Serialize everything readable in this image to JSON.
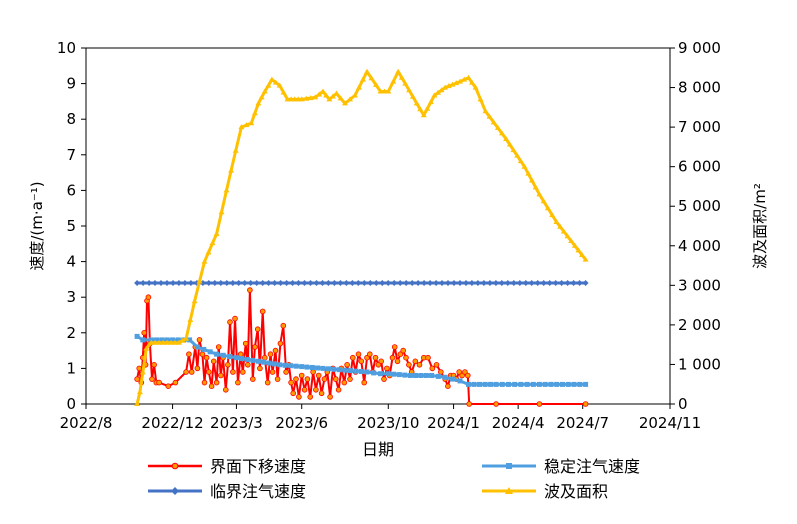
{
  "chart_data": {
    "type": "line",
    "xlabel": "日期",
    "ylabel_left": "速度/(m·a⁻¹)",
    "ylabel_right": "波及面积/m²",
    "x_ticks": [
      "2022/8",
      "2022/12",
      "2023/3",
      "2023/6",
      "2023/10",
      "2024/1",
      "2024/4",
      "2024/7",
      "2024/11"
    ],
    "y_left_ticks": [
      "0",
      "1",
      "2",
      "3",
      "4",
      "5",
      "6",
      "7",
      "8",
      "9",
      "10"
    ],
    "y_right_ticks": [
      "0",
      "1 000",
      "2 000",
      "3 000",
      "4 000",
      "5 000",
      "6 000",
      "7 000",
      "8 000",
      "9 000"
    ],
    "ylim_left": [
      0,
      10
    ],
    "ylim_right": [
      0,
      9000
    ],
    "legend": {
      "position": "bottom",
      "items": [
        "界面下移速度",
        "稳定注气速度",
        "临界注气速度",
        "波及面积"
      ]
    },
    "series": [
      {
        "name": "界面下移速度",
        "axis": "left",
        "color": "#ff0000",
        "marker_color": "#ff9900",
        "points": [
          [
            "2022-10-12",
            0.7
          ],
          [
            "2022-10-15",
            1.0
          ],
          [
            "2022-10-18",
            0.6
          ],
          [
            "2022-10-20",
            1.3
          ],
          [
            "2022-10-22",
            2.0
          ],
          [
            "2022-10-24",
            1.1
          ],
          [
            "2022-10-26",
            2.9
          ],
          [
            "2022-10-28",
            3.0
          ],
          [
            "2022-10-30",
            1.7
          ],
          [
            "2022-11-02",
            0.7
          ],
          [
            "2022-11-05",
            1.1
          ],
          [
            "2022-11-08",
            0.6
          ],
          [
            "2022-11-12",
            0.6
          ],
          [
            "2022-11-25",
            0.5
          ],
          [
            "2022-12-05",
            0.6
          ],
          [
            "2022-12-20",
            0.9
          ],
          [
            "2022-12-24",
            1.4
          ],
          [
            "2022-12-28",
            0.9
          ],
          [
            "2023-01-02",
            1.6
          ],
          [
            "2023-01-05",
            1.0
          ],
          [
            "2023-01-08",
            1.8
          ],
          [
            "2023-01-12",
            1.4
          ],
          [
            "2023-01-15",
            0.6
          ],
          [
            "2023-01-18",
            1.3
          ],
          [
            "2023-01-21",
            0.9
          ],
          [
            "2023-01-25",
            0.5
          ],
          [
            "2023-01-28",
            1.2
          ],
          [
            "2023-02-01",
            0.6
          ],
          [
            "2023-02-04",
            1.6
          ],
          [
            "2023-02-07",
            0.8
          ],
          [
            "2023-02-10",
            1.3
          ],
          [
            "2023-02-14",
            0.4
          ],
          [
            "2023-02-17",
            1.1
          ],
          [
            "2023-02-20",
            2.3
          ],
          [
            "2023-02-24",
            0.9
          ],
          [
            "2023-02-27",
            2.4
          ],
          [
            "2023-03-03",
            0.6
          ],
          [
            "2023-03-07",
            1.4
          ],
          [
            "2023-03-10",
            0.9
          ],
          [
            "2023-03-14",
            1.7
          ],
          [
            "2023-03-17",
            1.1
          ],
          [
            "2023-03-20",
            3.2
          ],
          [
            "2023-03-24",
            0.7
          ],
          [
            "2023-03-27",
            1.6
          ],
          [
            "2023-03-31",
            2.1
          ],
          [
            "2023-04-03",
            1.0
          ],
          [
            "2023-04-07",
            2.6
          ],
          [
            "2023-04-10",
            1.3
          ],
          [
            "2023-04-14",
            0.6
          ],
          [
            "2023-04-18",
            1.4
          ],
          [
            "2023-04-21",
            0.9
          ],
          [
            "2023-04-25",
            1.5
          ],
          [
            "2023-04-28",
            0.7
          ],
          [
            "2023-05-02",
            1.7
          ],
          [
            "2023-05-06",
            2.2
          ],
          [
            "2023-05-10",
            0.9
          ],
          [
            "2023-05-14",
            1.1
          ],
          [
            "2023-05-17",
            0.6
          ],
          [
            "2023-05-20",
            0.3
          ],
          [
            "2023-05-24",
            0.7
          ],
          [
            "2023-05-28",
            0.2
          ],
          [
            "2023-06-01",
            0.8
          ],
          [
            "2023-06-05",
            0.4
          ],
          [
            "2023-06-09",
            0.7
          ],
          [
            "2023-06-13",
            0.2
          ],
          [
            "2023-06-17",
            0.9
          ],
          [
            "2023-06-21",
            0.4
          ],
          [
            "2023-06-25",
            0.8
          ],
          [
            "2023-06-29",
            0.3
          ],
          [
            "2023-07-03",
            0.7
          ],
          [
            "2023-07-07",
            0.9
          ],
          [
            "2023-07-11",
            0.2
          ],
          [
            "2023-07-15",
            1.0
          ],
          [
            "2023-07-19",
            0.7
          ],
          [
            "2023-07-23",
            0.4
          ],
          [
            "2023-07-27",
            1.0
          ],
          [
            "2023-07-31",
            0.6
          ],
          [
            "2023-08-04",
            1.1
          ],
          [
            "2023-08-08",
            0.7
          ],
          [
            "2023-08-12",
            1.3
          ],
          [
            "2023-08-16",
            0.9
          ],
          [
            "2023-08-20",
            1.4
          ],
          [
            "2023-08-24",
            1.2
          ],
          [
            "2023-08-28",
            0.6
          ],
          [
            "2023-09-01",
            1.3
          ],
          [
            "2023-09-05",
            1.4
          ],
          [
            "2023-09-09",
            0.9
          ],
          [
            "2023-09-13",
            1.3
          ],
          [
            "2023-09-17",
            1.1
          ],
          [
            "2023-09-21",
            1.2
          ],
          [
            "2023-09-25",
            0.7
          ],
          [
            "2023-09-29",
            1.0
          ],
          [
            "2023-10-03",
            0.8
          ],
          [
            "2023-10-07",
            1.3
          ],
          [
            "2023-10-10",
            1.6
          ],
          [
            "2023-10-14",
            1.2
          ],
          [
            "2023-10-18",
            1.4
          ],
          [
            "2023-10-22",
            1.5
          ],
          [
            "2023-10-26",
            1.3
          ],
          [
            "2023-10-30",
            1.1
          ],
          [
            "2023-11-03",
            0.9
          ],
          [
            "2023-11-08",
            1.2
          ],
          [
            "2023-11-14",
            1.1
          ],
          [
            "2023-11-20",
            1.3
          ],
          [
            "2023-11-26",
            1.3
          ],
          [
            "2023-12-02",
            1.0
          ],
          [
            "2023-12-08",
            1.1
          ],
          [
            "2023-12-14",
            0.9
          ],
          [
            "2023-12-20",
            0.7
          ],
          [
            "2023-12-24",
            0.5
          ],
          [
            "2023-12-28",
            0.8
          ],
          [
            "2024-01-01",
            0.8
          ],
          [
            "2024-01-05",
            0.7
          ],
          [
            "2024-01-09",
            0.9
          ],
          [
            "2024-01-13",
            0.8
          ],
          [
            "2024-01-17",
            0.9
          ],
          [
            "2024-01-21",
            0.8
          ],
          [
            "2024-01-23",
            0.0
          ],
          [
            "2024-03-01",
            0.0
          ],
          [
            "2024-05-01",
            0.0
          ],
          [
            "2024-07-05",
            0.0
          ]
        ]
      },
      {
        "name": "稳定注气速度",
        "axis": "left",
        "color": "#4f9fe0",
        "points": [
          [
            "2022-10-12",
            1.9
          ],
          [
            "2022-10-20",
            1.8
          ],
          [
            "2022-11-01",
            1.8
          ],
          [
            "2022-12-01",
            1.8
          ],
          [
            "2022-12-25",
            1.8
          ],
          [
            "2023-01-05",
            1.6
          ],
          [
            "2023-02-01",
            1.4
          ],
          [
            "2023-03-01",
            1.3
          ],
          [
            "2023-04-01",
            1.2
          ],
          [
            "2023-05-01",
            1.1
          ],
          [
            "2023-06-01",
            1.05
          ],
          [
            "2023-07-01",
            1.0
          ],
          [
            "2023-08-01",
            0.95
          ],
          [
            "2023-09-01",
            0.9
          ],
          [
            "2023-09-20",
            0.85
          ],
          [
            "2023-10-01",
            0.85
          ],
          [
            "2023-11-01",
            0.8
          ],
          [
            "2023-12-01",
            0.8
          ],
          [
            "2023-12-20",
            0.75
          ],
          [
            "2024-01-10",
            0.65
          ],
          [
            "2024-01-22",
            0.55
          ],
          [
            "2024-03-01",
            0.55
          ],
          [
            "2024-05-01",
            0.55
          ],
          [
            "2024-07-05",
            0.55
          ]
        ]
      },
      {
        "name": "临界注气速度",
        "axis": "left",
        "color": "#4472c4",
        "points": [
          [
            "2022-10-12",
            3.4
          ],
          [
            "2024-07-05",
            3.4
          ]
        ]
      },
      {
        "name": "波及面积",
        "axis": "right",
        "color": "#ffc000",
        "points": [
          [
            "2022-10-12",
            0
          ],
          [
            "2022-10-16",
            300
          ],
          [
            "2022-10-20",
            800
          ],
          [
            "2022-10-25",
            1400
          ],
          [
            "2022-11-01",
            1550
          ],
          [
            "2022-12-10",
            1550
          ],
          [
            "2022-12-20",
            1650
          ],
          [
            "2023-01-01",
            2600
          ],
          [
            "2023-01-15",
            3600
          ],
          [
            "2023-02-01",
            4300
          ],
          [
            "2023-02-15",
            5400
          ],
          [
            "2023-02-28",
            6400
          ],
          [
            "2023-03-08",
            7000
          ],
          [
            "2023-03-22",
            7100
          ],
          [
            "2023-04-01",
            7600
          ],
          [
            "2023-04-10",
            7900
          ],
          [
            "2023-04-20",
            8200
          ],
          [
            "2023-05-01",
            8050
          ],
          [
            "2023-05-12",
            7700
          ],
          [
            "2023-06-01",
            7700
          ],
          [
            "2023-06-20",
            7750
          ],
          [
            "2023-07-01",
            7900
          ],
          [
            "2023-07-10",
            7700
          ],
          [
            "2023-07-20",
            7850
          ],
          [
            "2023-08-01",
            7600
          ],
          [
            "2023-08-15",
            7800
          ],
          [
            "2023-09-01",
            8400
          ],
          [
            "2023-09-20",
            7900
          ],
          [
            "2023-10-01",
            7900
          ],
          [
            "2023-10-15",
            8400
          ],
          [
            "2023-10-25",
            8100
          ],
          [
            "2023-11-10",
            7600
          ],
          [
            "2023-11-20",
            7300
          ],
          [
            "2023-12-05",
            7800
          ],
          [
            "2023-12-20",
            8000
          ],
          [
            "2024-01-10",
            8150
          ],
          [
            "2024-01-22",
            8250
          ],
          [
            "2024-02-01",
            8000
          ],
          [
            "2024-02-15",
            7400
          ],
          [
            "2024-03-15",
            6700
          ],
          [
            "2024-04-10",
            6000
          ],
          [
            "2024-05-01",
            5300
          ],
          [
            "2024-05-25",
            4600
          ],
          [
            "2024-06-20",
            4000
          ],
          [
            "2024-07-05",
            3650
          ]
        ]
      }
    ]
  }
}
